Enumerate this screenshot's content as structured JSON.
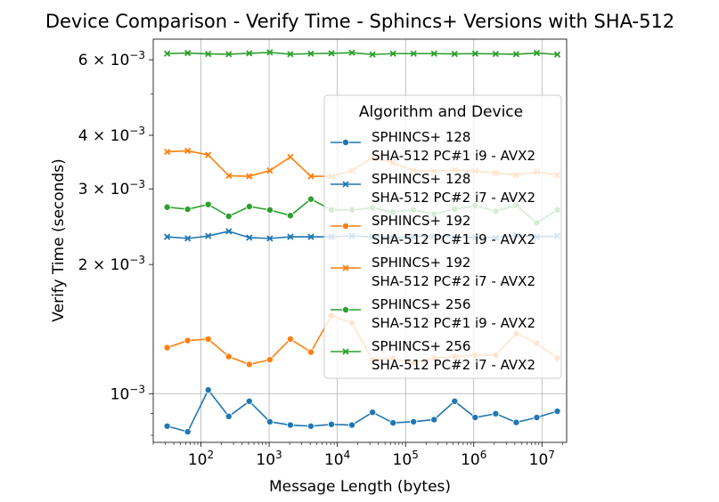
{
  "chart_data": {
    "type": "line",
    "title": "Device Comparison - Verify Time - Sphincs+ Versions with SHA-512",
    "xlabel": "Message Length (bytes)",
    "ylabel": "Verify Time (seconds)",
    "xscale": "log",
    "yscale": "log",
    "grid": true,
    "xlim": [
      20,
      23000000
    ],
    "ylim": [
      0.00077,
      0.0067
    ],
    "x_ticks": [
      {
        "value": 100,
        "label": "10",
        "exp": "2"
      },
      {
        "value": 1000,
        "label": "10",
        "exp": "3"
      },
      {
        "value": 10000,
        "label": "10",
        "exp": "4"
      },
      {
        "value": 100000,
        "label": "10",
        "exp": "5"
      },
      {
        "value": 1000000,
        "label": "10",
        "exp": "6"
      },
      {
        "value": 10000000,
        "label": "10",
        "exp": "7"
      }
    ],
    "y_ticks": [
      {
        "value": 0.001,
        "label": "10",
        "exp": "−3"
      },
      {
        "value": 0.002,
        "label": "2 × 10",
        "exp": "−3"
      },
      {
        "value": 0.003,
        "label": "3 × 10",
        "exp": "−3"
      },
      {
        "value": 0.004,
        "label": "4 × 10",
        "exp": "−3"
      },
      {
        "value": 0.006,
        "label": "6 × 10",
        "exp": "−3"
      }
    ],
    "y_minor_ticks": [
      0.0008,
      0.0009,
      0.005
    ],
    "legend": {
      "title": "Algorithm and Device",
      "placement": "upper-right"
    },
    "x": [
      32,
      64,
      128,
      256,
      512,
      1024,
      2048,
      4096,
      8192,
      16384,
      32768,
      65536,
      131072,
      262144,
      524288,
      1048576,
      2097152,
      4194304,
      8388608,
      16777216
    ],
    "series": [
      {
        "name_line1": "SPHINCS+ 128",
        "name_line2": "SHA-512 PC#1 i9 - AVX2",
        "color": "#1f77b4",
        "marker": "circle",
        "values": [
          0.00084,
          0.000815,
          0.00102,
          0.000885,
          0.00096,
          0.00086,
          0.000845,
          0.00084,
          0.000848,
          0.000845,
          0.000905,
          0.000855,
          0.00086,
          0.00087,
          0.00096,
          0.00088,
          0.000898,
          0.000857,
          0.00088,
          0.00091
        ]
      },
      {
        "name_line1": "SPHINCS+ 128",
        "name_line2": "SHA-512 PC#2 i7 - AVX2",
        "color": "#1f77b4",
        "marker": "x",
        "values": [
          0.00232,
          0.0023,
          0.00233,
          0.00239,
          0.00231,
          0.0023,
          0.00232,
          0.00232,
          0.00232,
          0.00233,
          0.00232,
          0.00231,
          0.00232,
          0.00233,
          0.00232,
          0.00231,
          0.00231,
          0.00234,
          0.00232,
          0.00233
        ]
      },
      {
        "name_line1": "SPHINCS+ 192",
        "name_line2": "SHA-512 PC#1 i9 - AVX2",
        "color": "#ff7f0e",
        "marker": "circle",
        "values": [
          0.00128,
          0.00133,
          0.00134,
          0.00122,
          0.00117,
          0.0012,
          0.00134,
          0.00125,
          0.00152,
          0.00146,
          0.0012,
          0.00121,
          0.00118,
          0.00121,
          0.00122,
          0.00123,
          0.00123,
          0.00138,
          0.00131,
          0.00121
        ]
      },
      {
        "name_line1": "SPHINCS+ 192",
        "name_line2": "SHA-512 PC#2 i7 - AVX2",
        "color": "#ff7f0e",
        "marker": "x",
        "values": [
          0.00366,
          0.00368,
          0.0036,
          0.00322,
          0.00321,
          0.00331,
          0.00356,
          0.00321,
          0.00321,
          0.00331,
          0.00355,
          0.00345,
          0.00331,
          0.0033,
          0.00332,
          0.0033,
          0.00327,
          0.00323,
          0.00329,
          0.00323
        ]
      },
      {
        "name_line1": "SPHINCS+ 256",
        "name_line2": "SHA-512 PC#1 i9 - AVX2",
        "color": "#2ca02c",
        "marker": "circle",
        "values": [
          0.00272,
          0.00269,
          0.00276,
          0.00259,
          0.00273,
          0.00268,
          0.0026,
          0.00284,
          0.00268,
          0.00268,
          0.00271,
          0.00265,
          0.00268,
          0.00262,
          0.00269,
          0.00274,
          0.00266,
          0.00275,
          0.0025,
          0.00268
        ]
      },
      {
        "name_line1": "SPHINCS+ 256",
        "name_line2": "SHA-512 PC#2 i7 - AVX2",
        "color": "#2ca02c",
        "marker": "x",
        "values": [
          0.0062,
          0.00622,
          0.00619,
          0.00618,
          0.00621,
          0.00624,
          0.00618,
          0.0062,
          0.00621,
          0.00623,
          0.00617,
          0.0062,
          0.0062,
          0.0062,
          0.00619,
          0.0062,
          0.00619,
          0.00618,
          0.00622,
          0.00617
        ]
      }
    ]
  }
}
